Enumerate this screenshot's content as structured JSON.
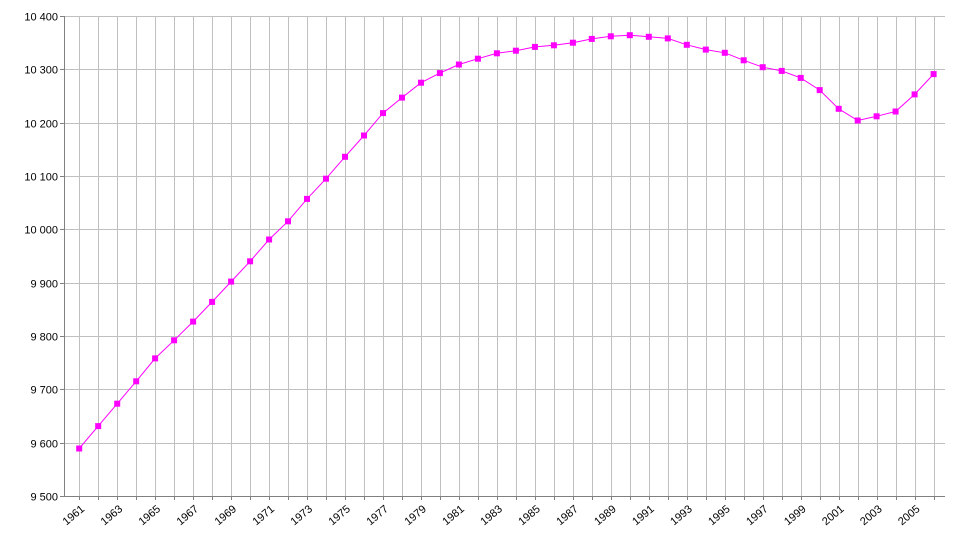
{
  "chart_data": {
    "type": "line",
    "title": "",
    "xlabel": "",
    "ylabel": "",
    "xlim": [
      1961,
      2006
    ],
    "ylim": [
      9500,
      10400
    ],
    "y_ticks": [
      9500,
      9600,
      9700,
      9800,
      9900,
      10000,
      10100,
      10200,
      10300,
      10400
    ],
    "y_tick_labels": [
      "9 500",
      "9 600",
      "9 700",
      "9 800",
      "9 900",
      "10 000",
      "10 100",
      "10 200",
      "10 300",
      "10 400"
    ],
    "x_tick_labels": [
      "1961",
      "1963",
      "1965",
      "1967",
      "1969",
      "1971",
      "1973",
      "1975",
      "1977",
      "1979",
      "1981",
      "1983",
      "1985",
      "1987",
      "1989",
      "1991",
      "1993",
      "1995",
      "1997",
      "1999",
      "2001",
      "2003",
      "2005"
    ],
    "grid": true,
    "legend": "none",
    "x": [
      1961,
      1962,
      1963,
      1964,
      1965,
      1966,
      1967,
      1968,
      1969,
      1970,
      1971,
      1972,
      1973,
      1974,
      1975,
      1976,
      1977,
      1978,
      1979,
      1980,
      1981,
      1982,
      1983,
      1984,
      1985,
      1986,
      1987,
      1988,
      1989,
      1990,
      1991,
      1992,
      1993,
      1994,
      1995,
      1996,
      1997,
      1998,
      1999,
      2000,
      2001,
      2002,
      2003,
      2004,
      2005,
      2006
    ],
    "series": [
      {
        "color": "#ff00ff",
        "values": [
          9589,
          9631,
          9673,
          9715,
          9758,
          9792,
          9827,
          9864,
          9902,
          9940,
          9981,
          10015,
          10057,
          10095,
          10136,
          10176,
          10218,
          10247,
          10275,
          10293,
          10309,
          10320,
          10330,
          10335,
          10342,
          10345,
          10350,
          10357,
          10362,
          10364,
          10361,
          10358,
          10346,
          10337,
          10331,
          10317,
          10304,
          10297,
          10284,
          10261,
          10226,
          10204,
          10212,
          10221,
          10253,
          10291
        ]
      }
    ]
  }
}
